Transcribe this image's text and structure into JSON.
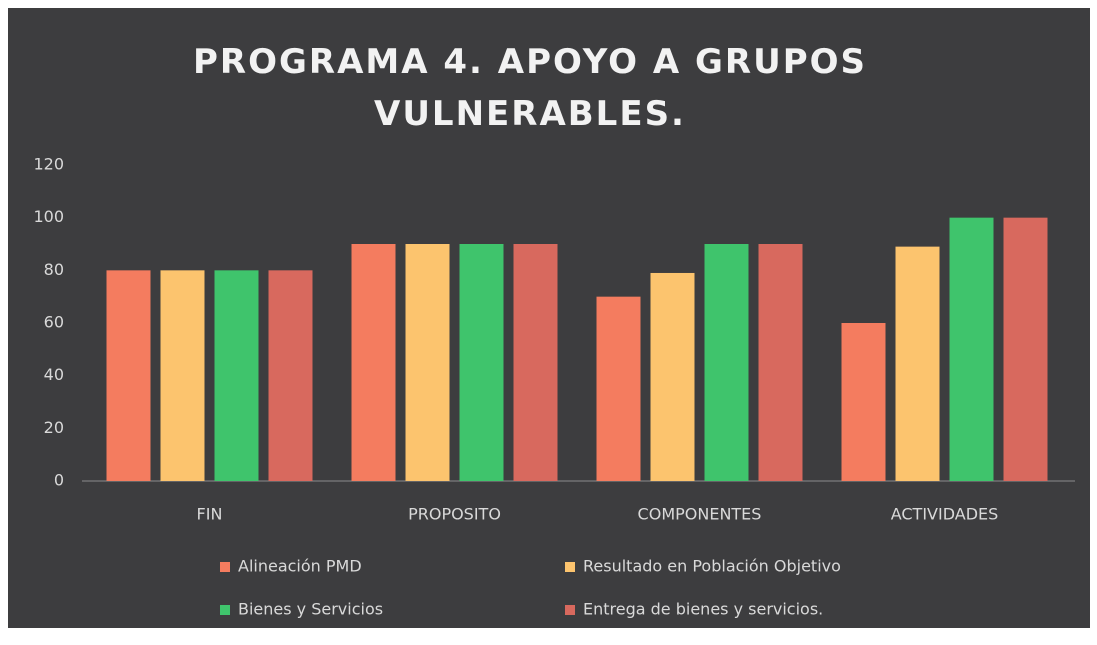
{
  "chart_data": {
    "type": "bar",
    "title": "PROGRAMA 4. APOYO A GRUPOS VULNERABLES.",
    "categories": [
      "FIN",
      "PROPOSITO",
      "COMPONENTES",
      "ACTIVIDADES"
    ],
    "series": [
      {
        "name": "Alineación PMD",
        "color": "#f47c5f",
        "values": [
          80,
          90,
          70,
          60
        ]
      },
      {
        "name": "Resultado en Población Objetivo",
        "color": "#fcc46e",
        "values": [
          80,
          90,
          79,
          89
        ]
      },
      {
        "name": "Bienes y Servicios",
        "color": "#3fc46c",
        "values": [
          80,
          90,
          90,
          100
        ]
      },
      {
        "name": "Entrega de bienes y servicios.",
        "color": "#d8695e",
        "values": [
          80,
          90,
          90,
          100
        ]
      }
    ],
    "ylim": [
      0,
      120
    ],
    "yticks": [
      0,
      20,
      40,
      60,
      80,
      100,
      120
    ],
    "grid": false,
    "legend": "bottom"
  }
}
